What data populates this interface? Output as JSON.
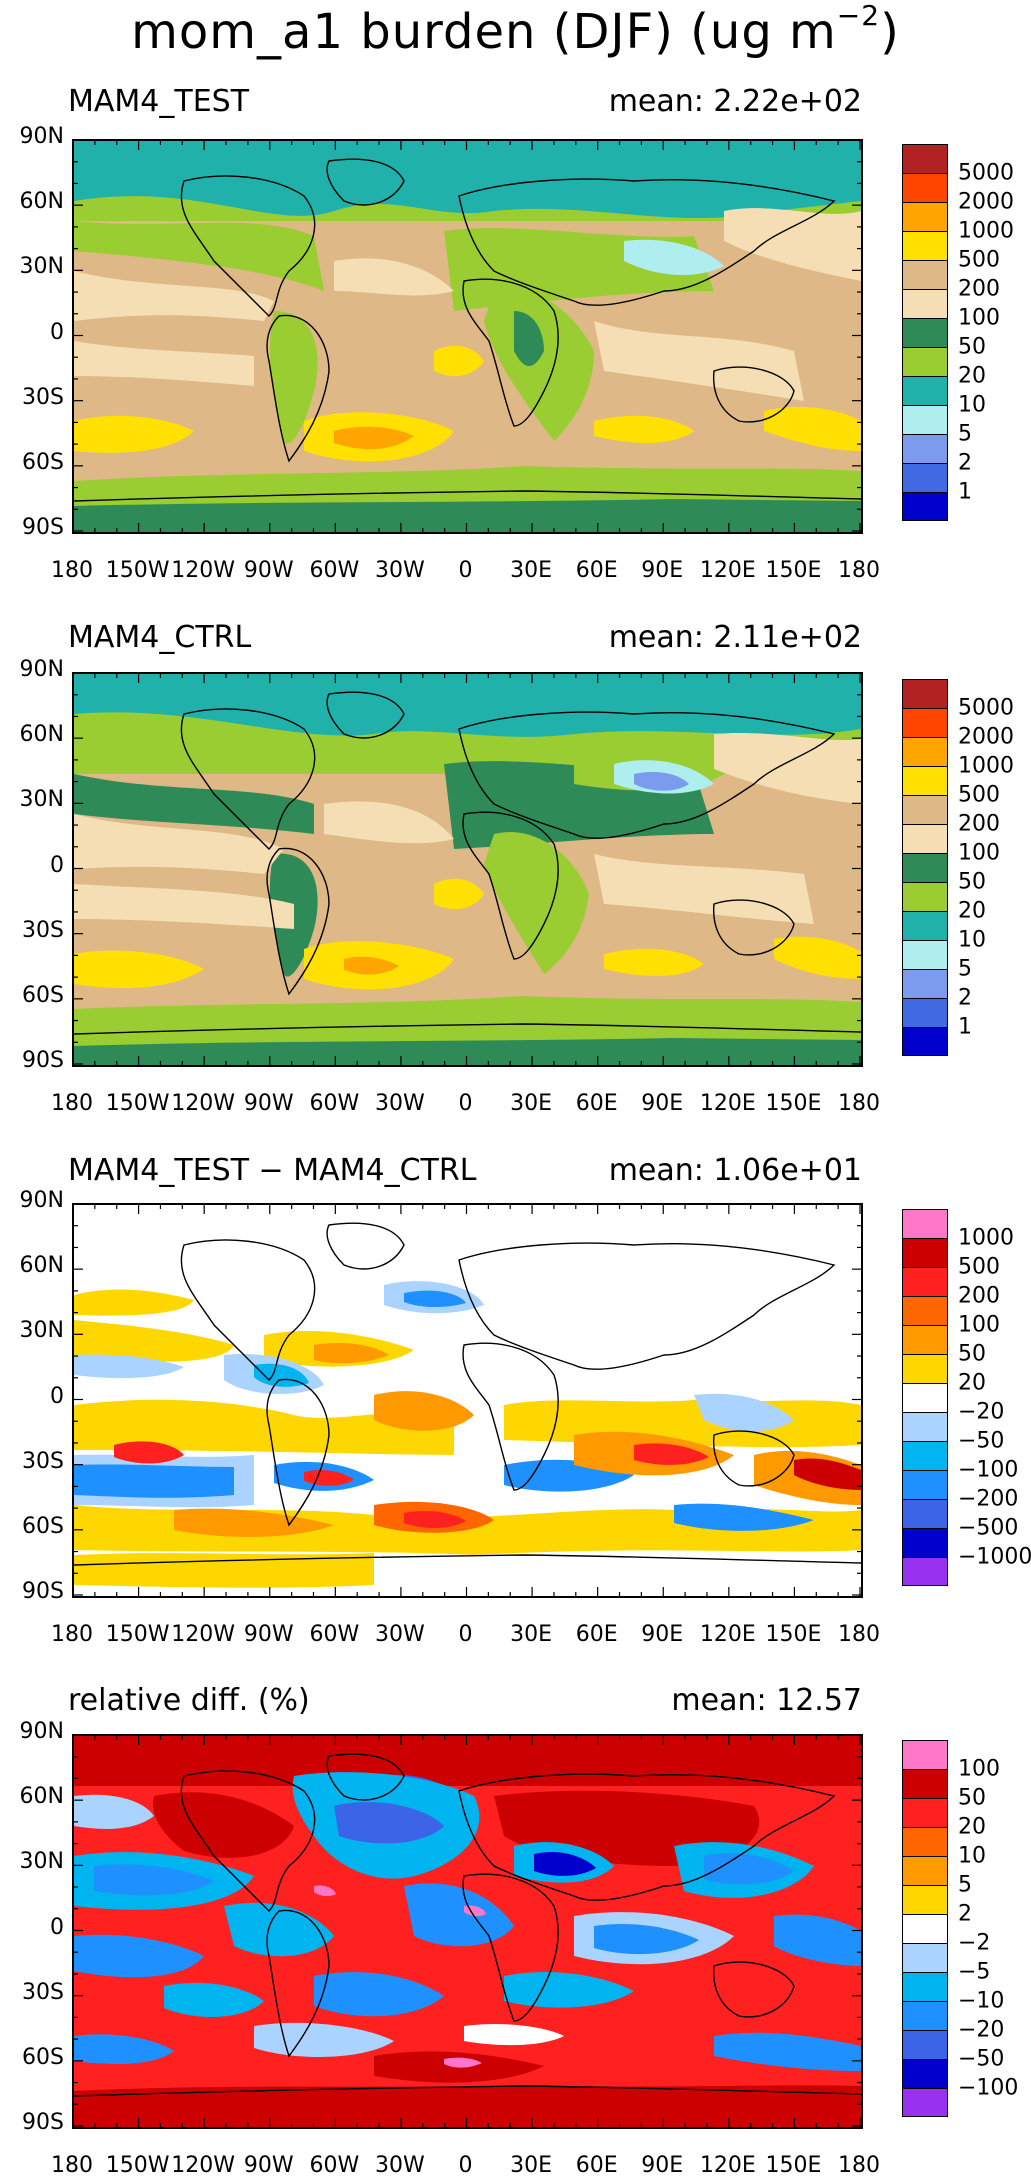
{
  "figure": {
    "title_main": "mom_a1 burden (DJF) (ug m",
    "title_sup": "−2",
    "title_close": ")"
  },
  "axes": {
    "lat_labels": [
      "90N",
      "60N",
      "30N",
      "0",
      "30S",
      "60S",
      "90S"
    ],
    "lon_labels": [
      "180",
      "150W",
      "120W",
      "90W",
      "60W",
      "30W",
      "0",
      "30E",
      "60E",
      "90E",
      "120E",
      "150E",
      "180"
    ]
  },
  "panels": [
    {
      "name": "MAM4_TEST",
      "mean": "mean: 2.22e+02",
      "legend_labels": [
        "5000",
        "2000",
        "1000",
        "500",
        "200",
        "100",
        "50",
        "20",
        "10",
        "5",
        "2",
        "1"
      ],
      "legend_colors": [
        "#b22222",
        "#ff4500",
        "#ffa500",
        "#ffe000",
        "#deb887",
        "#f5deb3",
        "#2e8b57",
        "#9acd32",
        "#20b2aa",
        "#afeeee",
        "#7b9bef",
        "#4169e1",
        "#0000cd"
      ]
    },
    {
      "name": "MAM4_CTRL",
      "mean": "mean: 2.11e+02",
      "legend_labels": [
        "5000",
        "2000",
        "1000",
        "500",
        "200",
        "100",
        "50",
        "20",
        "10",
        "5",
        "2",
        "1"
      ],
      "legend_colors": [
        "#b22222",
        "#ff4500",
        "#ffa500",
        "#ffe000",
        "#deb887",
        "#f5deb3",
        "#2e8b57",
        "#9acd32",
        "#20b2aa",
        "#afeeee",
        "#7b9bef",
        "#4169e1",
        "#0000cd"
      ]
    },
    {
      "name": "MAM4_TEST − MAM4_CTRL",
      "mean": "mean: 1.06e+01",
      "legend_labels": [
        "1000",
        "500",
        "200",
        "100",
        "50",
        "20",
        "−20",
        "−50",
        "−100",
        "−200",
        "−500",
        "−1000"
      ],
      "legend_colors": [
        "#ff77c8",
        "#cc0000",
        "#ff2020",
        "#ff6600",
        "#ff9900",
        "#ffd700",
        "#ffffff",
        "#aad4ff",
        "#00b4f0",
        "#1e90ff",
        "#3c64e6",
        "#0000cd",
        "#9932f0"
      ]
    },
    {
      "name": "relative diff. (%)",
      "mean": "mean: 12.57",
      "legend_labels": [
        "100",
        "50",
        "20",
        "10",
        "5",
        "2",
        "−2",
        "−5",
        "−10",
        "−20",
        "−50",
        "−100"
      ],
      "legend_colors": [
        "#ff77c8",
        "#cc0000",
        "#ff2020",
        "#ff6600",
        "#ff9900",
        "#ffd700",
        "#ffffff",
        "#aad4ff",
        "#00b4f0",
        "#1e90ff",
        "#3c64e6",
        "#0000cd",
        "#9932f0"
      ]
    }
  ]
}
